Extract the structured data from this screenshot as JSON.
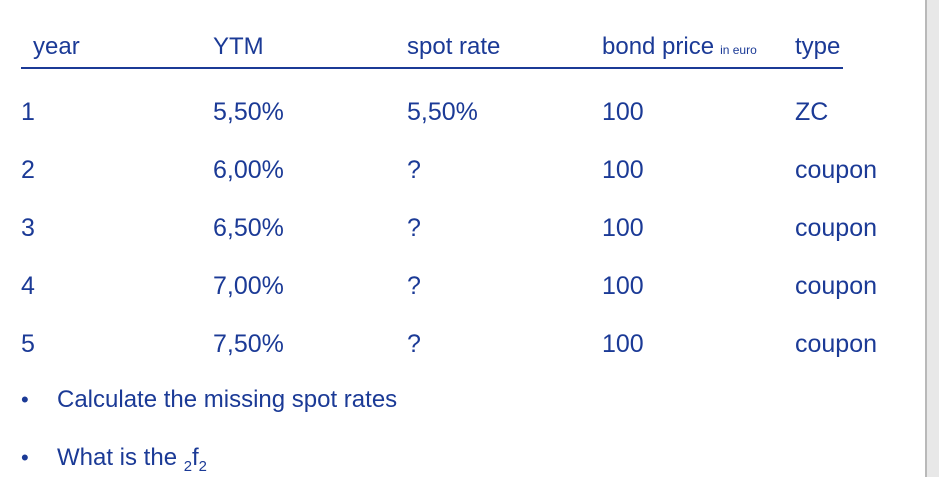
{
  "page": {
    "background": "#ffffff",
    "text_color": "#1b3a96",
    "edge_line_color": "#b9b9b9",
    "edge_fill_color": "#e8e8e8",
    "bullet_glyph": "•"
  },
  "table": {
    "headers": {
      "year": "year",
      "ytm": "YTM",
      "spot_rate": "spot rate",
      "bond_price": "bond price",
      "bond_price_unit": "in euro",
      "type": "type"
    },
    "rows": [
      [
        "1",
        "5,50%",
        "5,50%",
        "100",
        "ZC"
      ],
      [
        "2",
        "6,00%",
        "?",
        "100",
        "coupon"
      ],
      [
        "3",
        "6,50%",
        "?",
        "100",
        "coupon"
      ],
      [
        "4",
        "7,00%",
        "?",
        "100",
        "coupon"
      ],
      [
        "5",
        "7,50%",
        "?",
        "100",
        "coupon"
      ]
    ]
  },
  "bullets": {
    "item1": "Calculate the missing spot rates",
    "item2": {
      "prefix": "What is the ",
      "pre_subscript": "2",
      "symbol": "f",
      "post_subscript": "2"
    }
  }
}
